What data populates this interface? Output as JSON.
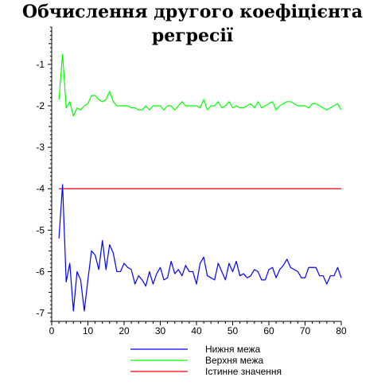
{
  "chart_data": {
    "type": "line",
    "title": "Обчислення другого коефіцієнта регресії",
    "xlabel": "",
    "ylabel": "",
    "xlim": [
      0,
      80
    ],
    "ylim": [
      -7.2,
      -0.1
    ],
    "x_ticks": [
      0,
      10,
      20,
      30,
      40,
      50,
      60,
      70,
      80
    ],
    "y_ticks": [
      -1,
      -2,
      -3,
      -4,
      -5,
      -6,
      -7
    ],
    "grid": false,
    "legend_position": "bottom-center",
    "x": [
      2,
      3,
      4,
      5,
      6,
      7,
      8,
      9,
      10,
      11,
      12,
      13,
      14,
      15,
      16,
      17,
      18,
      19,
      20,
      21,
      22,
      23,
      24,
      25,
      26,
      27,
      28,
      29,
      30,
      31,
      32,
      33,
      34,
      35,
      36,
      37,
      38,
      39,
      40,
      41,
      42,
      43,
      44,
      45,
      46,
      47,
      48,
      49,
      50,
      51,
      52,
      53,
      54,
      55,
      56,
      57,
      58,
      59,
      60,
      61,
      62,
      63,
      64,
      65,
      66,
      67,
      68,
      69,
      70,
      71,
      72,
      73,
      74,
      75,
      76,
      77,
      78,
      79,
      80
    ],
    "series": [
      {
        "name": "Нижня межа",
        "color": "#0000ff",
        "values": [
          -5.2,
          -3.9,
          -6.25,
          -5.8,
          -6.95,
          -6.0,
          -6.2,
          -6.95,
          -6.2,
          -5.5,
          -5.6,
          -5.95,
          -5.25,
          -5.95,
          -5.35,
          -5.55,
          -6.0,
          -6.0,
          -5.8,
          -5.9,
          -5.95,
          -6.3,
          -6.1,
          -6.2,
          -6.35,
          -6.0,
          -6.3,
          -6.05,
          -5.9,
          -6.2,
          -6.15,
          -5.75,
          -6.05,
          -5.95,
          -6.1,
          -5.85,
          -6.0,
          -6.0,
          -6.3,
          -5.8,
          -5.65,
          -6.1,
          -6.15,
          -6.2,
          -5.8,
          -6.0,
          -6.2,
          -5.8,
          -6.0,
          -5.75,
          -6.1,
          -6.05,
          -6.15,
          -6.1,
          -5.95,
          -6.0,
          -6.2,
          -6.2,
          -5.95,
          -5.9,
          -6.15,
          -5.95,
          -5.85,
          -5.7,
          -5.9,
          -5.95,
          -6.0,
          -6.15,
          -6.15,
          -5.9,
          -5.9,
          -5.9,
          -6.1,
          -6.1,
          -6.3,
          -6.1,
          -6.1,
          -5.9,
          -6.15
        ]
      },
      {
        "name": "Верхня межа",
        "color": "#00ff00",
        "values": [
          -1.85,
          -0.75,
          -2.05,
          -1.9,
          -2.25,
          -2.05,
          -2.1,
          -2.0,
          -1.95,
          -1.75,
          -1.75,
          -1.85,
          -1.9,
          -1.85,
          -1.65,
          -1.9,
          -2.0,
          -2.0,
          -2.0,
          -2.0,
          -2.05,
          -2.05,
          -2.1,
          -2.1,
          -2.0,
          -2.1,
          -2.0,
          -2.0,
          -2.0,
          -2.1,
          -2.0,
          -2.0,
          -2.1,
          -2.0,
          -1.9,
          -2.0,
          -2.0,
          -2.0,
          -2.0,
          -2.05,
          -1.85,
          -2.1,
          -2.0,
          -2.0,
          -1.9,
          -2.05,
          -2.0,
          -1.9,
          -2.05,
          -2.0,
          -2.05,
          -2.05,
          -2.0,
          -1.95,
          -2.05,
          -1.9,
          -2.05,
          -2.0,
          -1.95,
          -1.9,
          -2.1,
          -2.0,
          -1.95,
          -1.9,
          -1.9,
          -1.95,
          -2.0,
          -2.0,
          -2.0,
          -2.05,
          -1.95,
          -1.95,
          -2.0,
          -2.05,
          -2.1,
          -2.05,
          -2.0,
          -1.95,
          -2.1
        ]
      },
      {
        "name": "Істинне значення",
        "color": "#ff0000",
        "x": [
          2,
          80
        ],
        "values": [
          -4,
          -4
        ]
      }
    ]
  }
}
